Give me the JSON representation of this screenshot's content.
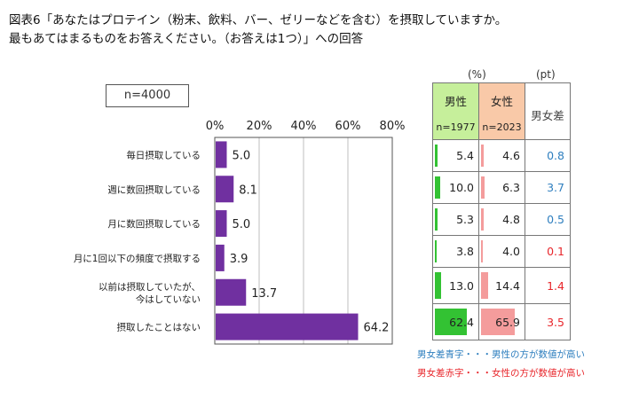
{
  "title": {
    "line1": "図表6「あなたはプロテイン（粉末、飲料、バー、ゼリーなどを含む）を摂取していますか。",
    "line2": "最もあてはまるものをお答えください。（お答えは1つ）」への回答"
  },
  "sample_label": "n=4000",
  "chart_data": {
    "type": "bar",
    "orientation": "horizontal",
    "categories": [
      [
        "毎日摂取している"
      ],
      [
        "週に数回摂取している"
      ],
      [
        "月に数回摂取している"
      ],
      [
        "月に1回以下の頻度で摂取する"
      ],
      [
        "以前は摂取していたが、",
        "今はしていない"
      ],
      [
        "摂取したことはない"
      ]
    ],
    "values": [
      5.0,
      8.1,
      5.0,
      3.9,
      13.7,
      64.2
    ],
    "value_labels": [
      "5.0",
      "8.1",
      "5.0",
      "3.9",
      "13.7",
      "64.2"
    ],
    "xlim": [
      0,
      80
    ],
    "xticks": [
      "0%",
      "20%",
      "40%",
      "60%",
      "80%"
    ],
    "grid": true,
    "bar_color": "#7030a0"
  },
  "table": {
    "unit_pct": "(%)",
    "unit_pt": "(pt)",
    "male_header": "男性",
    "male_n": "n=1977",
    "female_header": "女性",
    "female_n": "n=2023",
    "diff_header": "男女差",
    "male_color": "#33c233",
    "female_color": "#f49c9c",
    "rows": [
      {
        "male": 5.4,
        "female": 4.6,
        "male_label": "5.4",
        "female_label": "4.6",
        "diff": "0.8",
        "diff_color": "blue"
      },
      {
        "male": 10.0,
        "female": 6.3,
        "male_label": "10.0",
        "female_label": "6.3",
        "diff": "3.7",
        "diff_color": "blue"
      },
      {
        "male": 5.3,
        "female": 4.8,
        "male_label": "5.3",
        "female_label": "4.8",
        "diff": "0.5",
        "diff_color": "blue"
      },
      {
        "male": 3.8,
        "female": 4.0,
        "male_label": "3.8",
        "female_label": "4.0",
        "diff": "0.1",
        "diff_color": "red"
      },
      {
        "male": 13.0,
        "female": 14.4,
        "male_label": "13.0",
        "female_label": "14.4",
        "diff": "1.4",
        "diff_color": "red"
      },
      {
        "male": 62.4,
        "female": 65.9,
        "male_label": "62.4",
        "female_label": "65.9",
        "diff": "3.5",
        "diff_color": "red"
      }
    ],
    "bar_scale_max": 80
  },
  "notes": {
    "blue": "男女差青字・・・男性の方が数値が高い",
    "red": "男女差赤字・・・女性の方が数値が高い"
  }
}
